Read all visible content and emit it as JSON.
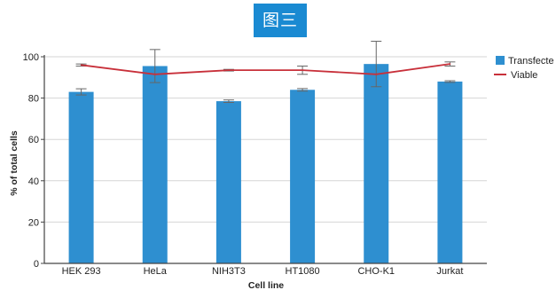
{
  "badge": {
    "text": "图三"
  },
  "chart_data": {
    "type": "bar",
    "title": "",
    "xlabel": "Cell line",
    "ylabel": "% of total cells",
    "ylim": [
      0,
      100
    ],
    "yticks": [
      0,
      20,
      40,
      60,
      80,
      100
    ],
    "grid": "horizontal",
    "legend_position": "top-right",
    "categories": [
      "HEK 293",
      "HeLa",
      "NIH3T3",
      "HT1080",
      "CHO-K1",
      "Jurkat"
    ],
    "series": [
      {
        "name": "Transfecte",
        "kind": "bar",
        "color": "#2e8fd0",
        "values": [
          83,
          95.5,
          78.5,
          84,
          96.5,
          88
        ],
        "error": [
          1.5,
          8,
          0.6,
          0.6,
          11,
          0.4
        ]
      },
      {
        "name": "Viable",
        "kind": "line",
        "color": "#c8303a",
        "values": [
          96,
          91.5,
          93.5,
          93.5,
          91.5,
          96.5
        ],
        "error": [
          0.5,
          0,
          0.4,
          2,
          0,
          1
        ]
      }
    ]
  }
}
